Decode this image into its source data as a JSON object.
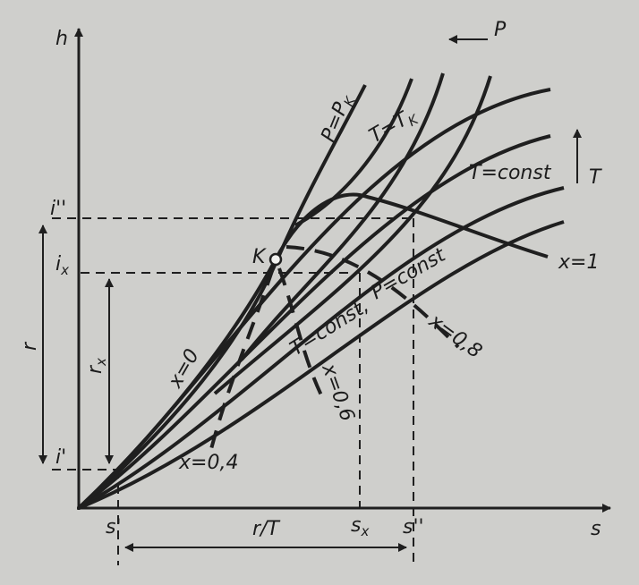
{
  "axes": {
    "h": "h",
    "s": "s"
  },
  "arrows": {
    "pressure": "P",
    "temperature": "T"
  },
  "curves": {
    "critical_pressure": {
      "main": "P=P",
      "sub": "K"
    },
    "critical_temperature": {
      "main": "T=T",
      "sub": "K"
    },
    "isotherm": "T=const",
    "isotherm_wet": "T=const,",
    "isobar": "P=const",
    "x1": "x=1",
    "x0": "x=0",
    "x08": "x=0,8",
    "x06": "x=0,6",
    "x04": "x=0,4"
  },
  "critical_point": "K",
  "h_marks": {
    "i_double": "i''",
    "i_x": {
      "main": "i",
      "sub": "x"
    },
    "i_single": "i'"
  },
  "s_marks": {
    "s_single": "s'",
    "s_x": {
      "main": "s",
      "sub": "x"
    },
    "s_double": "s''"
  },
  "intervals": {
    "r": "r",
    "r_x": {
      "main": "r",
      "sub": "x"
    },
    "r_over_T": "r/T"
  }
}
